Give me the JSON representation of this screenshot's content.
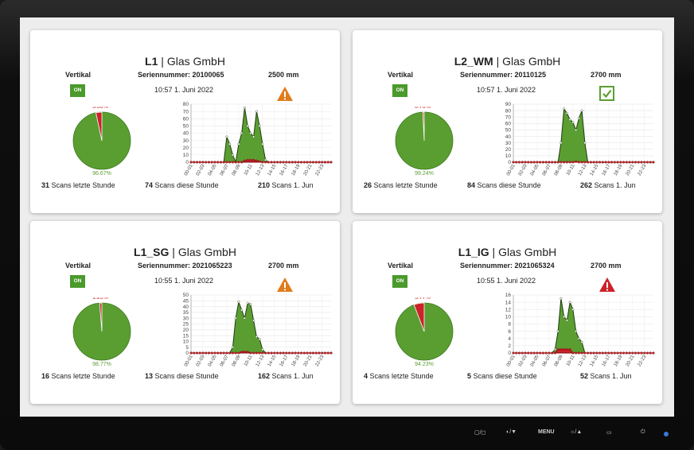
{
  "cards": [
    {
      "line": "L1",
      "company": "Glas GmbH",
      "orientation": "Vertikal",
      "serial": "Seriennummer: 20100065",
      "width": "2500 mm",
      "time": "10:57  1. Juni 2022",
      "state": "ON",
      "status_icon": "warning-orange-icon",
      "pie_red_label": "3.33%",
      "pie_green_label": "96.67%",
      "pie_red_fraction": 0.0333,
      "hour_count": "31",
      "hour_label": "Scans letzte Stunde",
      "session_count": "74",
      "session_label": "Scans diese Stunde",
      "day_count": "210",
      "day_label": "Scans 1. Jun",
      "y_max": 80,
      "y_step": 10,
      "series_green": [
        0,
        0,
        0,
        0,
        0,
        0,
        0,
        0,
        0,
        0,
        0,
        0,
        35,
        25,
        10,
        0,
        25,
        40,
        75,
        50,
        40,
        35,
        70,
        50,
        25,
        3,
        0,
        0,
        0,
        0,
        0,
        0,
        0,
        0,
        0,
        0,
        0,
        0,
        0,
        0,
        0,
        0,
        0,
        0,
        0,
        0,
        0,
        0
      ],
      "series_red": [
        0,
        0,
        0,
        0,
        0,
        0,
        0,
        0,
        0,
        0,
        0,
        0,
        0,
        0,
        0,
        0,
        0,
        0,
        2,
        3,
        3,
        3,
        2,
        1,
        0,
        0,
        0,
        0,
        0,
        0,
        0,
        0,
        0,
        0,
        0,
        0,
        0,
        0,
        0,
        0,
        0,
        0,
        0,
        0,
        0,
        0,
        0,
        0
      ]
    },
    {
      "line": "L2_WM",
      "company": "Glas GmbH",
      "orientation": "Vertikal",
      "serial": "Seriennummer: 20110125",
      "width": "2700 mm",
      "time": "10:57  1. Juni 2022",
      "state": "ON",
      "status_icon": "checkmark-green-icon",
      "pie_red_label": "0.76%",
      "pie_green_label": "99.24%",
      "pie_red_fraction": 0.0076,
      "hour_count": "26",
      "hour_label": "Scans letzte Stunde",
      "session_count": "84",
      "session_label": "Scans diese Stunde",
      "day_count": "262",
      "day_label": "Scans 1. Jun",
      "y_max": 90,
      "y_step": 10,
      "series_green": [
        0,
        0,
        0,
        0,
        0,
        0,
        0,
        0,
        0,
        0,
        0,
        0,
        0,
        0,
        0,
        0,
        30,
        83,
        76,
        66,
        62,
        50,
        68,
        80,
        30,
        0,
        0,
        0,
        0,
        0,
        0,
        0,
        0,
        0,
        0,
        0,
        0,
        0,
        0,
        0,
        0,
        0,
        0,
        0,
        0,
        0,
        0,
        0
      ],
      "series_red": [
        0,
        0,
        0,
        0,
        0,
        0,
        0,
        0,
        0,
        0,
        0,
        0,
        0,
        0,
        0,
        0,
        0,
        0,
        0,
        0,
        0,
        1,
        0,
        0,
        0,
        0,
        0,
        0,
        0,
        0,
        0,
        0,
        0,
        0,
        0,
        0,
        0,
        0,
        0,
        0,
        0,
        0,
        0,
        0,
        0,
        0,
        0,
        0
      ]
    },
    {
      "line": "L1_SG",
      "company": "Glas GmbH",
      "orientation": "Vertikal",
      "serial": "Seriennummer: 2021065223",
      "width": "2700 mm",
      "time": "10:55  1. Juni 2022",
      "state": "ON",
      "status_icon": "warning-orange-icon",
      "pie_red_label": "1.23%",
      "pie_green_label": "98.77%",
      "pie_red_fraction": 0.0123,
      "hour_count": "16",
      "hour_label": "Scans letzte Stunde",
      "session_count": "13",
      "session_label": "Scans diese Stunde",
      "day_count": "162",
      "day_label": "Scans 1. Jun",
      "y_max": 50,
      "y_step": 5,
      "series_green": [
        0,
        0,
        0,
        0,
        0,
        0,
        0,
        0,
        0,
        0,
        0,
        0,
        0,
        0,
        5,
        30,
        44,
        37,
        30,
        43,
        42,
        28,
        14,
        12,
        3,
        0,
        0,
        0,
        0,
        0,
        0,
        0,
        0,
        0,
        0,
        0,
        0,
        0,
        0,
        0,
        0,
        0,
        0,
        0,
        0,
        0,
        0,
        0
      ],
      "series_red": [
        0,
        0,
        0,
        0,
        0,
        0,
        0,
        0,
        0,
        0,
        0,
        0,
        0,
        0,
        0,
        0,
        0,
        1,
        1,
        1,
        0,
        0,
        0,
        0,
        0,
        0,
        0,
        0,
        0,
        0,
        0,
        0,
        0,
        0,
        0,
        0,
        0,
        0,
        0,
        0,
        0,
        0,
        0,
        0,
        0,
        0,
        0,
        0
      ]
    },
    {
      "line": "L1_IG",
      "company": "Glas GmbH",
      "orientation": "Vertikal",
      "serial": "Seriennummer: 2021065324",
      "width": "2700 mm",
      "time": "10:55  1. Juni 2022",
      "state": "ON",
      "status_icon": "warning-red-icon",
      "pie_red_label": "5.77%",
      "pie_green_label": "94.23%",
      "pie_red_fraction": 0.0577,
      "hour_count": "4",
      "hour_label": "Scans letzte Stunde",
      "session_count": "5",
      "session_label": "Scans diese Stunde",
      "day_count": "52",
      "day_label": "Scans 1. Jun",
      "y_max": 16,
      "y_step": 2,
      "series_green": [
        0,
        0,
        0,
        0,
        0,
        0,
        0,
        0,
        0,
        0,
        0,
        0,
        0,
        0,
        1,
        6,
        15,
        10,
        9,
        14,
        12,
        6,
        4,
        3,
        0,
        0,
        0,
        0,
        0,
        0,
        0,
        0,
        0,
        0,
        0,
        0,
        0,
        0,
        0,
        0,
        0,
        0,
        0,
        0,
        0,
        0,
        0,
        0
      ],
      "series_red": [
        0,
        0,
        0,
        0,
        0,
        0,
        0,
        0,
        0,
        0,
        0,
        0,
        0,
        0,
        0,
        1,
        1,
        1,
        1,
        1,
        0,
        0,
        0,
        0,
        0,
        0,
        0,
        0,
        0,
        0,
        0,
        0,
        0,
        0,
        0,
        0,
        0,
        0,
        0,
        0,
        0,
        0,
        0,
        0,
        0,
        0,
        0,
        0
      ]
    }
  ],
  "x_tick_labels": [
    "00-01",
    "02-03",
    "04-05",
    "06-07",
    "08-09",
    "10-11",
    "12-13",
    "14-15",
    "16-17",
    "18-19",
    "20-21",
    "22-23"
  ],
  "colors": {
    "green": "#5a9e32",
    "green_dark": "#2f5f14",
    "red": "#cc2229",
    "orange": "#e07c1b",
    "badge": "#4a9a2c"
  },
  "monitor_controls": {
    "input": "▢/◻",
    "picture": "◐/▼",
    "menu": "MENU",
    "brightness": "☼/▲",
    "display": "▭",
    "power": "⏻"
  }
}
